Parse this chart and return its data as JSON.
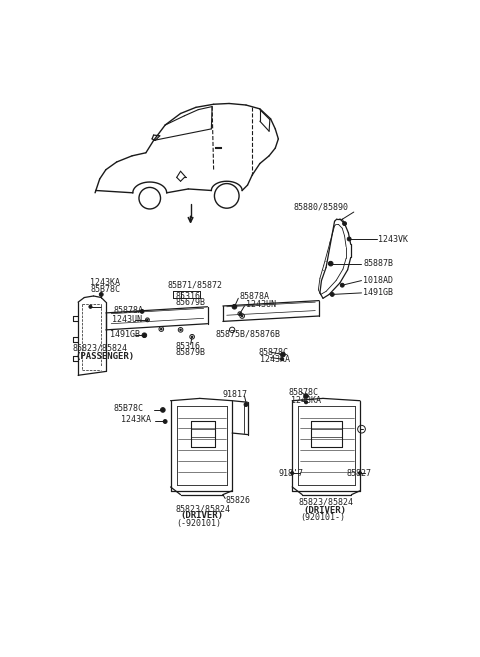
{
  "bg_color": "#ffffff",
  "line_color": "#1a1a1a",
  "text_color": "#222222",
  "fig_width": 4.8,
  "fig_height": 6.57,
  "dpi": 100,
  "font_size": 6.0,
  "labels": {
    "85880_85890": "85880/85890",
    "1243VK": "1243VK",
    "85887B": "85887B",
    "1018AD": "1018AD",
    "1491GB": "1491GB",
    "1243KA": "1243KA",
    "85878C": "85B78C",
    "85871_85872": "85B71/85872",
    "85316_85879B": "85316\n85679B",
    "85878BA": "85878A",
    "1243UN": "1243UN",
    "85878A_r": "85878A",
    "1243UN_r": "1243UN",
    "1491GB2": "1491GB",
    "85823_85824": "85823/85824",
    "PASSENGER": "(PASSENGER)",
    "85316_bot": "85316\n85879B",
    "85875B_85876B": "85875B/85876B",
    "85878C_mid": "85878C",
    "1243KA_mid": "1243KA",
    "85878C_dr": "85B78C",
    "1243KA_dr": "1243KA",
    "91817": "91817",
    "85826": "85826",
    "85823_85824_dr1": "85823/85824",
    "DRIVER1": "(DRIVER)",
    "DATE1": "(-920101)",
    "85823_85824_dr2": "85823/85824",
    "DRIVER2": "(DRIVER)",
    "DATE2": "(920101-)",
    "918_7": "918'7",
    "85827": "85827"
  }
}
